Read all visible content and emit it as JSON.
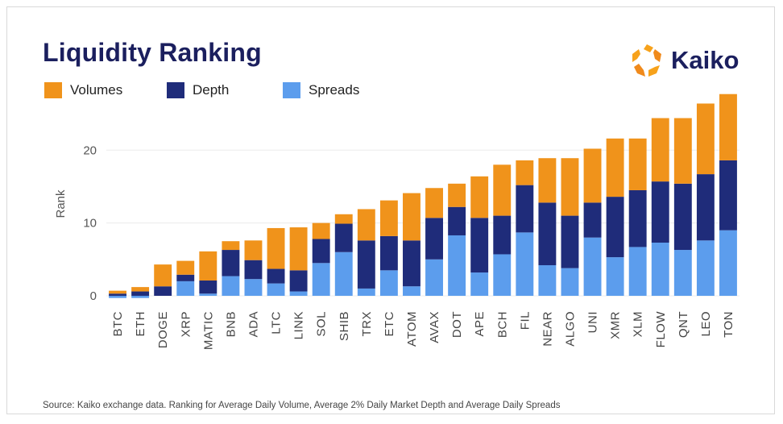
{
  "header": {
    "title": "Liquidity Ranking"
  },
  "brand": {
    "name": "Kaiko",
    "icon": "kaiko-logo-icon"
  },
  "legend": [
    {
      "label": "Volumes",
      "color": "#f0931b"
    },
    {
      "label": "Depth",
      "color": "#1f2c7a"
    },
    {
      "label": "Spreads",
      "color": "#5c9ded"
    }
  ],
  "footer": {
    "source": "Source: Kaiko exchange data. Ranking for Average Daily Volume, Average 2% Daily Market Depth and Average Daily Spreads"
  },
  "chart_data": {
    "type": "bar",
    "stacked": true,
    "ylabel": "Rank",
    "ylim": [
      -1,
      28
    ],
    "yticks": [
      0,
      10,
      20
    ],
    "grid": true,
    "legend_position": "top-left",
    "categories": [
      "BTC",
      "ETH",
      "DOGE",
      "XRP",
      "MATIC",
      "BNB",
      "ADA",
      "LTC",
      "LINK",
      "SOL",
      "SHIB",
      "TRX",
      "ETC",
      "ATOM",
      "AVAX",
      "DOT",
      "APE",
      "BCH",
      "FIL",
      "NEAR",
      "ALGO",
      "UNI",
      "XMR",
      "XLM",
      "FLOW",
      "QNT",
      "LEO",
      "TON"
    ],
    "series": [
      {
        "name": "Spreads",
        "color": "#5c9ded",
        "values": [
          -0.3,
          -0.3,
          0.0,
          2.0,
          0.3,
          2.7,
          2.3,
          1.7,
          0.6,
          4.5,
          6.0,
          1.0,
          3.5,
          1.3,
          5.0,
          8.3,
          3.2,
          5.7,
          8.7,
          4.2,
          3.8,
          8.0,
          5.3,
          6.7,
          7.3,
          6.3,
          7.6,
          9.0
        ]
      },
      {
        "name": "Depth",
        "color": "#1f2c7a",
        "values": [
          0.3,
          0.6,
          1.3,
          0.9,
          1.8,
          3.6,
          2.6,
          2.0,
          2.9,
          3.3,
          3.9,
          6.6,
          4.7,
          6.3,
          5.7,
          3.9,
          7.5,
          5.3,
          6.5,
          8.6,
          7.2,
          4.8,
          8.3,
          7.8,
          8.4,
          9.1,
          9.1,
          9.6
        ]
      },
      {
        "name": "Volumes",
        "color": "#f0931b",
        "values": [
          0.4,
          0.6,
          3.0,
          1.9,
          4.0,
          1.2,
          2.7,
          5.6,
          5.9,
          2.2,
          1.3,
          4.3,
          4.9,
          6.5,
          4.1,
          3.2,
          5.7,
          7.0,
          3.4,
          6.1,
          7.9,
          7.4,
          8.0,
          7.1,
          8.7,
          9.0,
          9.7,
          9.1
        ]
      }
    ]
  }
}
